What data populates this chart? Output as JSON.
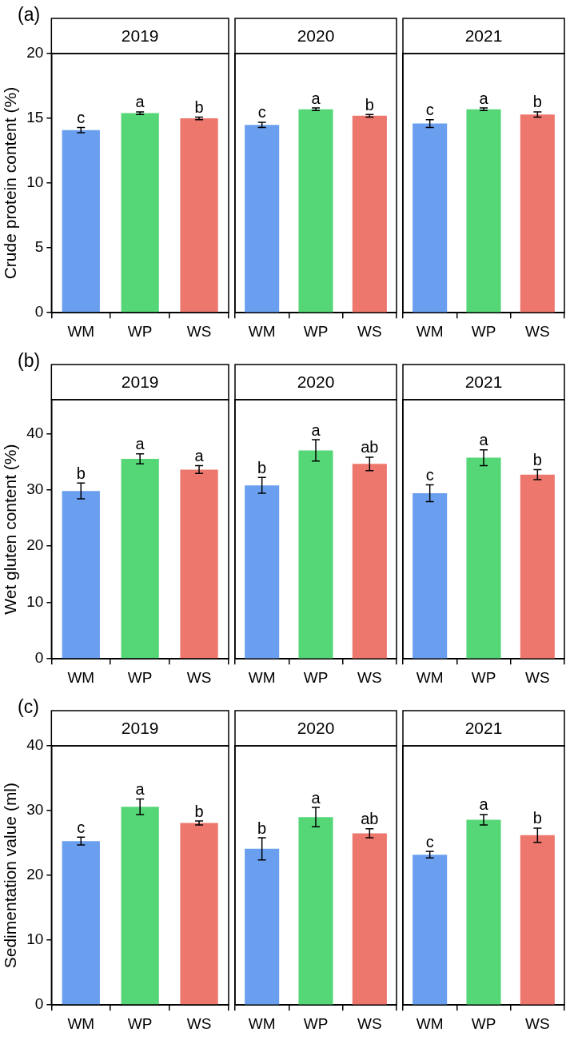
{
  "chart_data": [
    {
      "type": "bar",
      "title": "2019",
      "ylabel": "Crude protein content (%)",
      "categories": [
        "WM",
        "WP",
        "WS"
      ],
      "values": [
        14.1,
        15.4,
        15.0
      ],
      "errors": [
        0.2,
        0.1,
        0.1
      ],
      "colors": [
        "#6a9ff0",
        "#55d677",
        "#ed776d"
      ],
      "ylim": [
        0,
        20
      ],
      "yticks": [
        0,
        5,
        10,
        15,
        20
      ],
      "grid": false,
      "legend": false,
      "annotations": [
        "(a)",
        {
          "text": "c",
          "x": "WM",
          "y": 14.1
        },
        {
          "text": "a",
          "x": "WP",
          "y": 15.4
        },
        {
          "text": "b",
          "x": "WS",
          "y": 15.0
        }
      ]
    },
    {
      "type": "bar",
      "title": "2020",
      "categories": [
        "WM",
        "WP",
        "WS"
      ],
      "values": [
        14.5,
        15.7,
        15.2
      ],
      "errors": [
        0.2,
        0.1,
        0.1
      ],
      "colors": [
        "#6a9ff0",
        "#55d677",
        "#ed776d"
      ],
      "ylim": [
        0,
        20
      ],
      "yticks": [
        0,
        5,
        10,
        15,
        20
      ],
      "grid": false,
      "legend": false,
      "tick_labels": "x",
      "annotations": [
        {
          "text": "c",
          "x": "WM",
          "y": 14.5
        },
        {
          "text": "a",
          "x": "WP",
          "y": 15.7
        },
        {
          "text": "b",
          "x": "WS",
          "y": 15.2
        }
      ]
    },
    {
      "type": "bar",
      "title": "2021",
      "categories": [
        "WM",
        "WP",
        "WS"
      ],
      "values": [
        14.6,
        15.7,
        15.3
      ],
      "errors": [
        0.3,
        0.1,
        0.2
      ],
      "colors": [
        "#6a9ff0",
        "#55d677",
        "#ed776d"
      ],
      "ylim": [
        0,
        20
      ],
      "yticks": [
        0,
        5,
        10,
        15,
        20
      ],
      "grid": false,
      "legend": false,
      "tick_labels": "x",
      "annotations": [
        {
          "text": "c",
          "x": "WM",
          "y": 14.6
        },
        {
          "text": "a",
          "x": "WP",
          "y": 15.7
        },
        {
          "text": "b",
          "x": "WS",
          "y": 15.3
        }
      ]
    },
    {
      "type": "bar",
      "title": "2019",
      "ylabel": "Wet gluten content (%)",
      "categories": [
        "WM",
        "WP",
        "WS"
      ],
      "values": [
        29.8,
        35.5,
        33.6
      ],
      "errors": [
        1.4,
        0.9,
        0.7
      ],
      "colors": [
        "#6a9ff0",
        "#55d677",
        "#ed776d"
      ],
      "ylim": [
        0,
        46
      ],
      "yticks": [
        0,
        10,
        20,
        30,
        40
      ],
      "grid": false,
      "legend": false,
      "annotations": [
        "(b)",
        {
          "text": "b",
          "x": "WM",
          "y": 29.8
        },
        {
          "text": "a",
          "x": "WP",
          "y": 35.5
        },
        {
          "text": "a",
          "x": "WS",
          "y": 33.6
        }
      ]
    },
    {
      "type": "bar",
      "title": "2020",
      "categories": [
        "WM",
        "WP",
        "WS"
      ],
      "values": [
        30.8,
        37.0,
        34.6
      ],
      "errors": [
        1.4,
        1.9,
        1.2
      ],
      "colors": [
        "#6a9ff0",
        "#55d677",
        "#ed776d"
      ],
      "ylim": [
        0,
        46
      ],
      "yticks": [
        0,
        10,
        20,
        30,
        40
      ],
      "grid": false,
      "legend": false,
      "tick_labels": "x",
      "annotations": [
        {
          "text": "b",
          "x": "WM",
          "y": 30.8
        },
        {
          "text": "a",
          "x": "WP",
          "y": 37.0
        },
        {
          "text": "ab",
          "x": "WS",
          "y": 34.6
        }
      ]
    },
    {
      "type": "bar",
      "title": "2021",
      "categories": [
        "WM",
        "WP",
        "WS"
      ],
      "values": [
        29.4,
        35.7,
        32.7
      ],
      "errors": [
        1.5,
        1.4,
        0.9
      ],
      "colors": [
        "#6a9ff0",
        "#55d677",
        "#ed776d"
      ],
      "ylim": [
        0,
        46
      ],
      "yticks": [
        0,
        10,
        20,
        30,
        40
      ],
      "grid": false,
      "legend": false,
      "tick_labels": "x",
      "annotations": [
        {
          "text": "c",
          "x": "WM",
          "y": 29.4
        },
        {
          "text": "a",
          "x": "WP",
          "y": 35.7
        },
        {
          "text": "b",
          "x": "WS",
          "y": 32.7
        }
      ]
    },
    {
      "type": "bar",
      "title": "2019",
      "ylabel": "Sedimentation value (ml)",
      "categories": [
        "WM",
        "WP",
        "WS"
      ],
      "values": [
        25.3,
        30.6,
        28.1
      ],
      "errors": [
        0.6,
        1.2,
        0.3
      ],
      "colors": [
        "#6a9ff0",
        "#55d677",
        "#ed776d"
      ],
      "ylim": [
        0,
        40
      ],
      "yticks": [
        0,
        10,
        20,
        30,
        40
      ],
      "grid": false,
      "legend": false,
      "annotations": [
        "(c)",
        {
          "text": "c",
          "x": "WM",
          "y": 25.3
        },
        {
          "text": "a",
          "x": "WP",
          "y": 30.6
        },
        {
          "text": "b",
          "x": "WS",
          "y": 28.1
        }
      ]
    },
    {
      "type": "bar",
      "title": "2020",
      "categories": [
        "WM",
        "WP",
        "WS"
      ],
      "values": [
        24.1,
        29.0,
        26.5
      ],
      "errors": [
        1.7,
        1.5,
        0.7
      ],
      "colors": [
        "#6a9ff0",
        "#55d677",
        "#ed776d"
      ],
      "ylim": [
        0,
        40
      ],
      "yticks": [
        0,
        10,
        20,
        30,
        40
      ],
      "grid": false,
      "legend": false,
      "tick_labels": "x",
      "annotations": [
        {
          "text": "b",
          "x": "WM",
          "y": 24.1
        },
        {
          "text": "a",
          "x": "WP",
          "y": 29.0
        },
        {
          "text": "ab",
          "x": "WS",
          "y": 26.5
        }
      ]
    },
    {
      "type": "bar",
      "title": "2021",
      "categories": [
        "WM",
        "WP",
        "WS"
      ],
      "values": [
        23.2,
        28.6,
        26.2
      ],
      "errors": [
        0.5,
        0.8,
        1.1
      ],
      "colors": [
        "#6a9ff0",
        "#55d677",
        "#ed776d"
      ],
      "ylim": [
        0,
        40
      ],
      "yticks": [
        0,
        10,
        20,
        30,
        40
      ],
      "grid": false,
      "legend": false,
      "tick_labels": "x",
      "annotations": [
        {
          "text": "c",
          "x": "WM",
          "y": 23.2
        },
        {
          "text": "a",
          "x": "WP",
          "y": 28.6
        },
        {
          "text": "b",
          "x": "WS",
          "y": 26.2
        }
      ]
    }
  ]
}
